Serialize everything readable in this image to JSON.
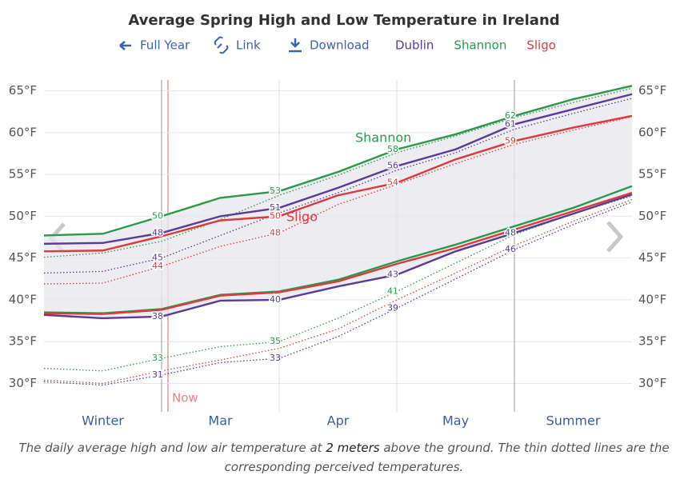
{
  "title": "Average Spring High and Low Temperature in Ireland",
  "toolbar": [
    "Full Year",
    "Link",
    "Download"
  ],
  "chart_data": {
    "type": "line",
    "categories": [
      null,
      "Winter",
      null,
      "Mar",
      null,
      "Apr",
      null,
      "May",
      null,
      "Summer",
      null
    ],
    "ylim": [
      26.6,
      66.3
    ],
    "yticks": [
      {
        "value": 30,
        "label": "30°F"
      },
      {
        "value": 35,
        "label": "35°F"
      },
      {
        "value": 40,
        "label": "40°F"
      },
      {
        "value": 45,
        "label": "45°F"
      },
      {
        "value": 50,
        "label": "50°F"
      },
      {
        "value": 55,
        "label": "55°F"
      },
      {
        "value": 60,
        "label": "60°F"
      },
      {
        "value": 65,
        "label": "65°F"
      }
    ],
    "grid": true,
    "series": [
      {
        "name": "Dublin",
        "color": "#5b3a9e",
        "high": [
          46.7,
          46.8,
          48,
          50,
          51,
          53.4,
          56,
          58,
          61,
          62.8,
          64.6
        ],
        "high_labels": [
          null,
          null,
          "48",
          null,
          "51",
          null,
          "56",
          null,
          "61",
          null,
          null
        ],
        "low": [
          38.2,
          37.8,
          38,
          39.9,
          40,
          41.6,
          43,
          45.8,
          48,
          50.3,
          52.6
        ],
        "low_labels": [
          null,
          null,
          "38",
          null,
          "40",
          null,
          "43",
          null,
          "48",
          null,
          null
        ],
        "perceived_high": [
          43.2,
          43.4,
          45,
          47.7,
          50.4,
          52.8,
          55.5,
          57.6,
          60.4,
          62.3,
          64.1
        ],
        "perceived_high_labels": [
          null,
          null,
          "45",
          null,
          null,
          null,
          null,
          null,
          null,
          null,
          null
        ],
        "perceived_low": [
          30.2,
          29.8,
          31,
          32.5,
          33,
          35.6,
          39,
          42.5,
          46,
          49,
          51.7
        ],
        "perceived_low_labels": [
          null,
          null,
          "31",
          null,
          "33",
          null,
          "39",
          null,
          "46",
          null,
          null
        ]
      },
      {
        "name": "Shannon",
        "color": "#2a9a4a",
        "high": [
          47.7,
          47.9,
          50,
          52.2,
          53,
          55.3,
          58,
          59.8,
          62,
          64,
          65.6
        ],
        "high_labels": [
          null,
          null,
          "50",
          null,
          "53",
          null,
          "58",
          null,
          "62",
          null,
          null
        ],
        "low": [
          38.5,
          38.4,
          38.9,
          40.6,
          41,
          42.4,
          44.6,
          46.6,
          48.8,
          51,
          53.6
        ],
        "low_labels": [
          null,
          null,
          null,
          null,
          null,
          null,
          null,
          null,
          null,
          null,
          null
        ],
        "perceived_high": [
          45.1,
          45.6,
          47,
          49.6,
          52.5,
          54.9,
          57.6,
          59.6,
          61.8,
          63.6,
          65.3
        ],
        "perceived_high_labels": [
          null,
          null,
          null,
          null,
          null,
          null,
          null,
          null,
          null,
          null,
          null
        ],
        "perceived_low": [
          31.8,
          31.5,
          33,
          34.4,
          35,
          37.8,
          41,
          44.4,
          47.8,
          50.3,
          52.4
        ],
        "perceived_low_labels": [
          null,
          null,
          "33",
          null,
          "35",
          null,
          "41",
          null,
          null,
          null,
          null
        ]
      },
      {
        "name": "Sligo",
        "color": "#e0393c",
        "high": [
          45.8,
          45.9,
          47.6,
          49.5,
          50,
          52.5,
          54,
          56.8,
          59,
          60.6,
          62
        ],
        "high_labels": [
          null,
          null,
          null,
          null,
          "50",
          null,
          "54",
          null,
          "59",
          null,
          null
        ],
        "low": [
          38.4,
          38.3,
          38.8,
          40.5,
          40.9,
          42.2,
          44.3,
          46.2,
          48.4,
          50.6,
          52.8
        ],
        "low_labels": [
          null,
          null,
          null,
          null,
          null,
          null,
          null,
          null,
          null,
          null,
          null
        ],
        "perceived_high": [
          41.9,
          42,
          44,
          46.4,
          48,
          51.4,
          53.8,
          56.3,
          58.6,
          60.3,
          61.9
        ],
        "perceived_high_labels": [
          null,
          null,
          "44",
          null,
          "48",
          null,
          null,
          null,
          null,
          null,
          null
        ],
        "perceived_low": [
          30.4,
          30,
          31.5,
          32.8,
          34.2,
          36.5,
          40,
          43.2,
          46.5,
          49.4,
          52
        ],
        "perceived_low_labels": [
          null,
          null,
          null,
          null,
          null,
          null,
          null,
          null,
          null,
          null,
          null
        ]
      }
    ],
    "annotations": [
      "Shannon",
      "Sligo",
      "Now"
    ]
  },
  "caption": [
    "The daily average high and low air temperature at ",
    "2 meters",
    " above the ground. The thin dotted lines are the corresponding perceived temperatures."
  ]
}
